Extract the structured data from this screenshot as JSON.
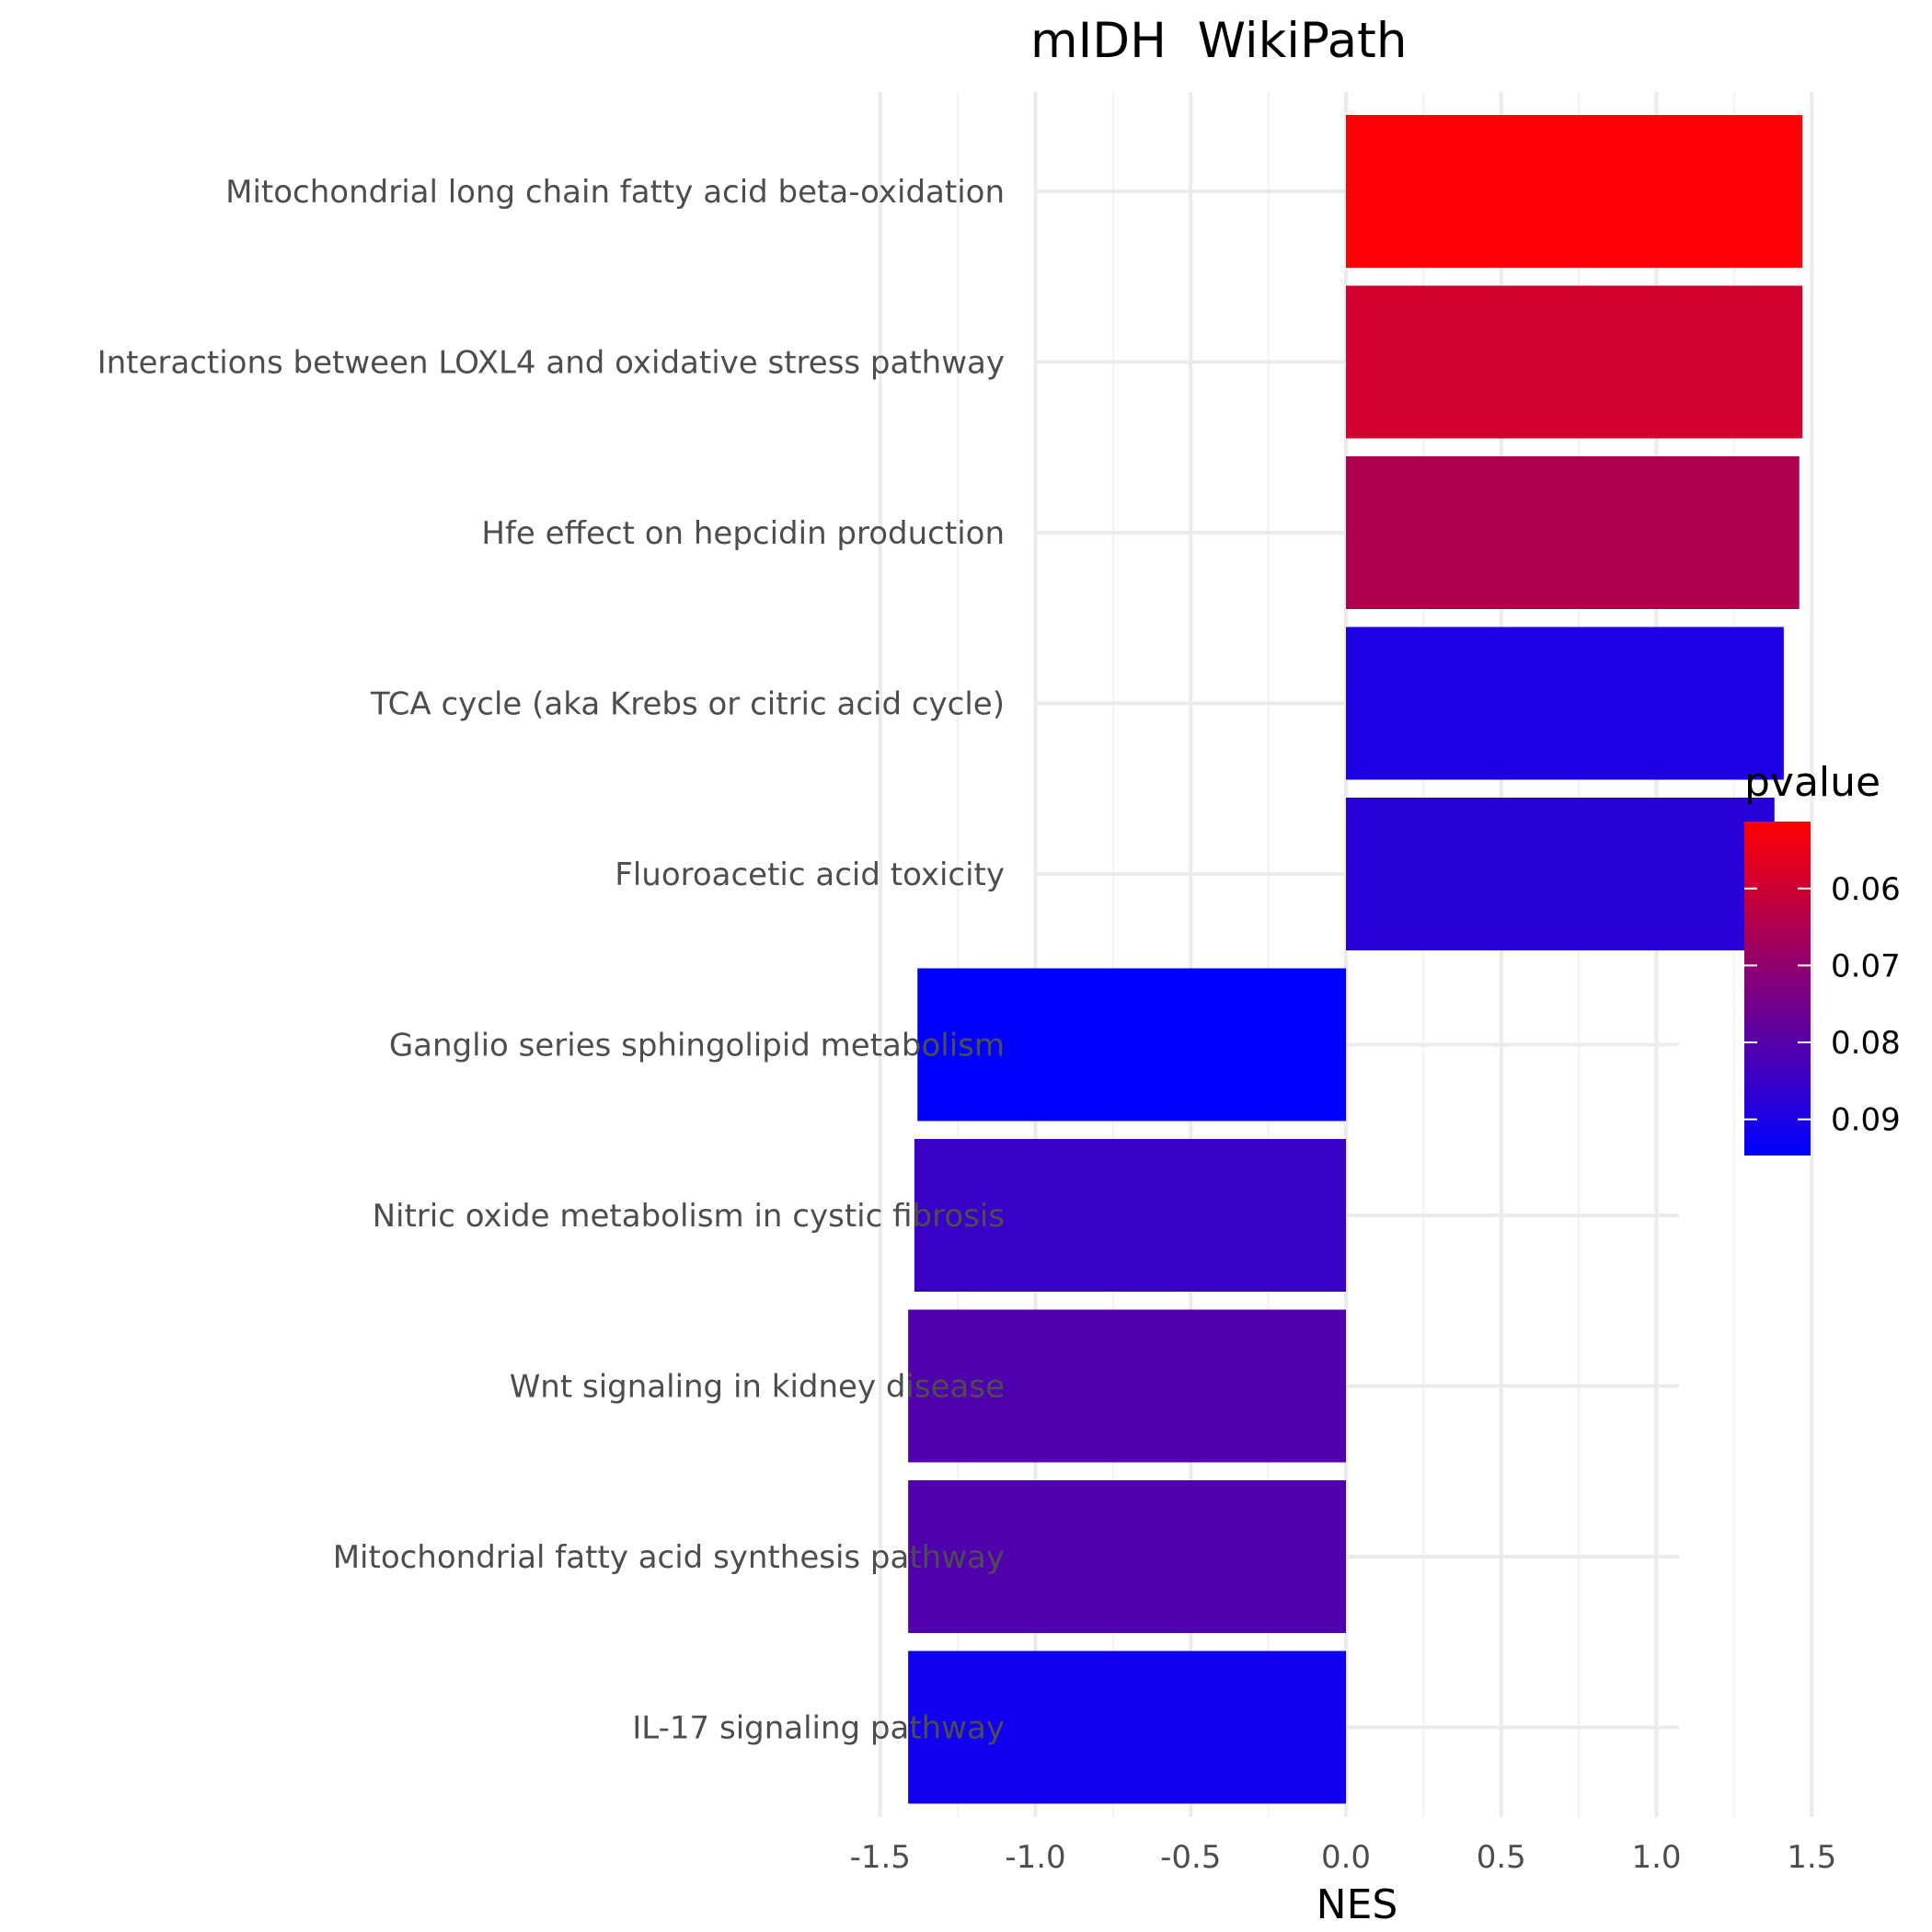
{
  "chart_data": {
    "type": "bar",
    "orientation": "horizontal",
    "title": "mIDH  WikiPath",
    "xlabel": "NES",
    "ylabel": "",
    "xlim": [
      -1.5,
      1.5
    ],
    "x_ticks": [
      "-1.5",
      "-1.0",
      "-0.5",
      "0.0",
      "0.5",
      "1.0",
      "1.5"
    ],
    "categories": [
      "Mitochondrial long chain fatty acid beta-oxidation",
      "Interactions between LOXL4 and oxidative stress pathway",
      "Hfe effect on hepcidin production",
      "TCA cycle (aka Krebs or citric acid cycle)",
      "Fluoroacetic acid toxicity",
      "Ganglio series sphingolipid metabolism",
      "Nitric oxide metabolism in cystic fibrosis",
      "Wnt signaling in kidney disease",
      "Mitochondrial fatty acid synthesis pathway",
      "IL-17 signaling pathway"
    ],
    "values": [
      1.47,
      1.47,
      1.46,
      1.41,
      1.38,
      -1.38,
      -1.39,
      -1.41,
      -1.41,
      -1.41
    ],
    "pvalues": [
      0.052,
      0.059,
      0.065,
      0.09,
      0.088,
      0.096,
      0.085,
      0.081,
      0.081,
      0.092
    ],
    "legend": {
      "title": "pvalue",
      "position": "right",
      "labels": [
        "0.06",
        "0.07",
        "0.08",
        "0.09"
      ],
      "ticks": [
        0.06,
        0.07,
        0.08,
        0.09
      ],
      "range": [
        0.0513,
        0.0947
      ],
      "color_low": "#ff0000",
      "color_high": "#0000ff"
    },
    "grid": true
  }
}
